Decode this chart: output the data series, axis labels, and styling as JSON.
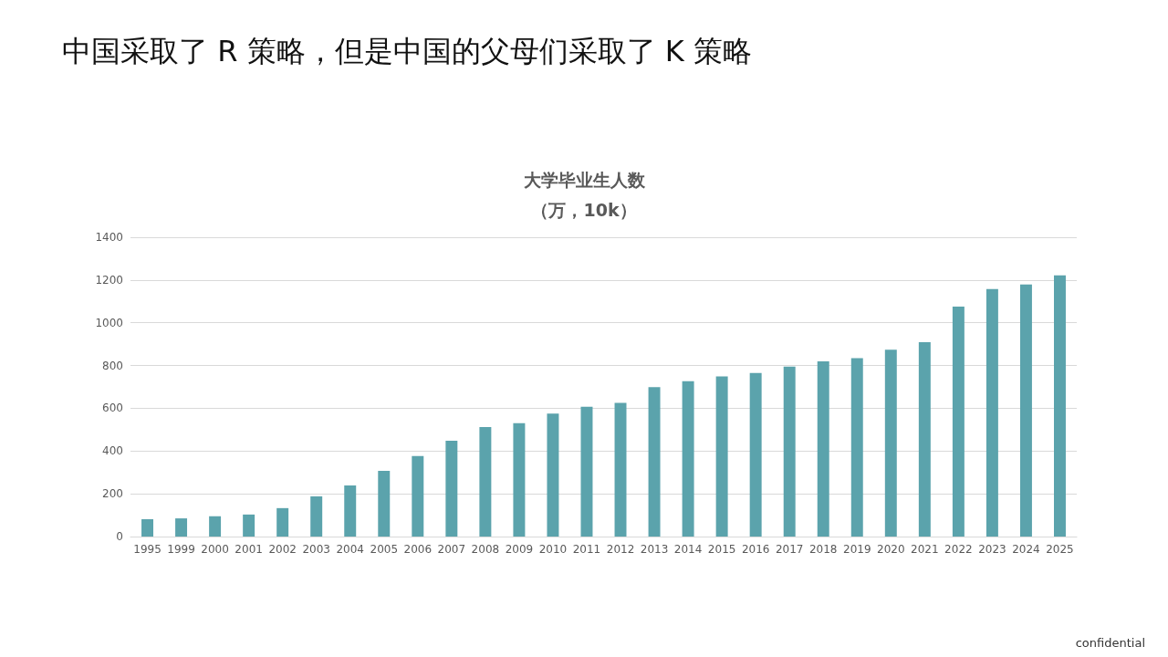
{
  "chart_data": {
    "type": "bar",
    "title": "大学毕业生人数",
    "subtitle": "（万，10k）",
    "annotations": [
      "中国采取了 R 策略，但是中国的父母们采取了 K 策略",
      "confidential"
    ],
    "categories": [
      "1995",
      "1999",
      "2000",
      "2001",
      "2002",
      "2003",
      "2004",
      "2005",
      "2006",
      "2007",
      "2008",
      "2009",
      "2010",
      "2011",
      "2012",
      "2013",
      "2014",
      "2015",
      "2016",
      "2017",
      "2018",
      "2019",
      "2020",
      "2021",
      "2022",
      "2023",
      "2024",
      "2025"
    ],
    "values": [
      81,
      85,
      95,
      103,
      133,
      188,
      239,
      307,
      377,
      448,
      512,
      530,
      575,
      607,
      625,
      699,
      727,
      749,
      765,
      795,
      820,
      834,
      874,
      909,
      1076,
      1158,
      1179,
      1222
    ],
    "color": "#5ba3ac",
    "ylim": [
      0,
      1400
    ],
    "yticks": [
      0,
      200,
      400,
      600,
      800,
      1000,
      1200,
      1400
    ],
    "grid": "y"
  }
}
